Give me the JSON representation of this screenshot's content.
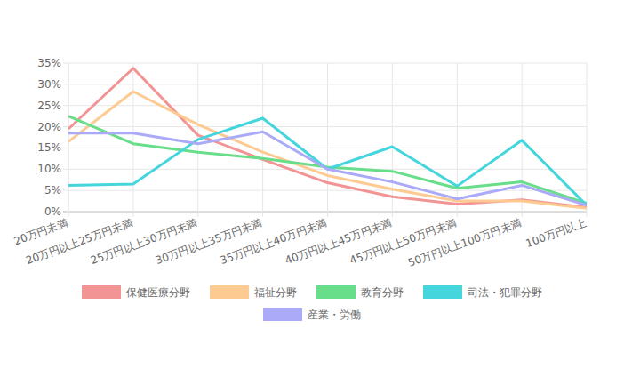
{
  "chart_data": {
    "type": "line",
    "categories": [
      "20万円未満",
      "20万円以上25万円未満",
      "25万円以上30万円未満",
      "30万円以上35万円未満",
      "35万円以上40万円未満",
      "40万円以上45万円未満",
      "45万円以上50万円未満",
      "50万円以上100万円未満",
      "100万円以上"
    ],
    "series": [
      {
        "name": "保健医療分野",
        "color": "#f39494",
        "values": [
          19.5,
          33.8,
          18,
          12.3,
          6.8,
          3.5,
          1.8,
          2.8,
          1
        ]
      },
      {
        "name": "福祉分野",
        "color": "#fdcb92",
        "values": [
          16.5,
          28.3,
          20.5,
          14,
          8.5,
          5.3,
          2.5,
          2.5,
          0.8
        ]
      },
      {
        "name": "教育分野",
        "color": "#68de8a",
        "values": [
          22.5,
          16,
          14,
          12.5,
          10.5,
          9.5,
          5.5,
          7,
          2
        ]
      },
      {
        "name": "司法・犯罪分野",
        "color": "#45d5dd",
        "values": [
          6.2,
          6.5,
          17,
          22,
          10,
          15.3,
          6,
          16.8,
          1.5
        ]
      },
      {
        "name": "産業・労働",
        "color": "#aaaaf8",
        "values": [
          18.5,
          18.5,
          16,
          18.8,
          10,
          7,
          3,
          6.2,
          1.5
        ]
      }
    ],
    "ylim": [
      0,
      35
    ],
    "yticks": [
      {
        "value": 0,
        "label": "0%"
      },
      {
        "value": 5,
        "label": "5%"
      },
      {
        "value": 10,
        "label": "10%"
      },
      {
        "value": 15,
        "label": "15%"
      },
      {
        "value": 20,
        "label": "20%"
      },
      {
        "value": 25,
        "label": "25%"
      },
      {
        "value": 30,
        "label": "30%"
      },
      {
        "value": 35,
        "label": "35%"
      }
    ],
    "grid": true,
    "legend": "bottom"
  }
}
